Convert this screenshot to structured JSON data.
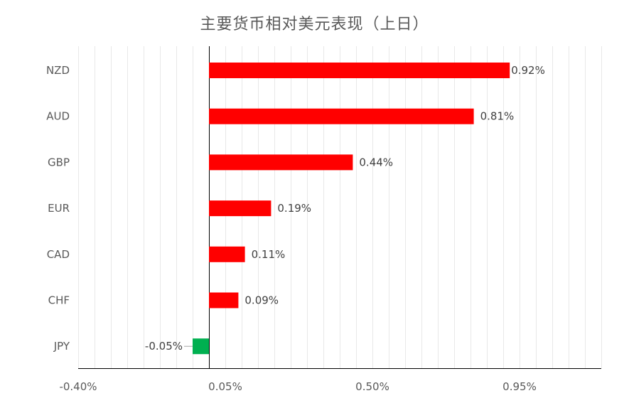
{
  "title": "主要货币相对美元表现（上日）",
  "colors": {
    "positive": "#ff0000",
    "negative": "#00b050",
    "grid": "#e8e8e8",
    "axis": "#000000",
    "text": "#595959"
  },
  "chart_data": {
    "type": "bar",
    "orientation": "horizontal",
    "title": "主要货币相对美元表现（上日）",
    "xlabel": "",
    "ylabel": "",
    "categories": [
      "NZD",
      "AUD",
      "GBP",
      "EUR",
      "CAD",
      "CHF",
      "JPY"
    ],
    "values": [
      0.92,
      0.81,
      0.44,
      0.19,
      0.11,
      0.09,
      -0.05
    ],
    "data_labels": [
      "0.92%",
      "0.81%",
      "0.44%",
      "0.19%",
      "0.11%",
      "0.09%",
      "-0.05%"
    ],
    "xlim": [
      -0.4,
      1.2
    ],
    "x_ticks": [
      -0.4,
      0.05,
      0.5,
      0.95
    ],
    "x_tick_labels": [
      "-0.40%",
      "0.05%",
      "0.50%",
      "0.95%"
    ],
    "grid": true,
    "legend": "none"
  }
}
